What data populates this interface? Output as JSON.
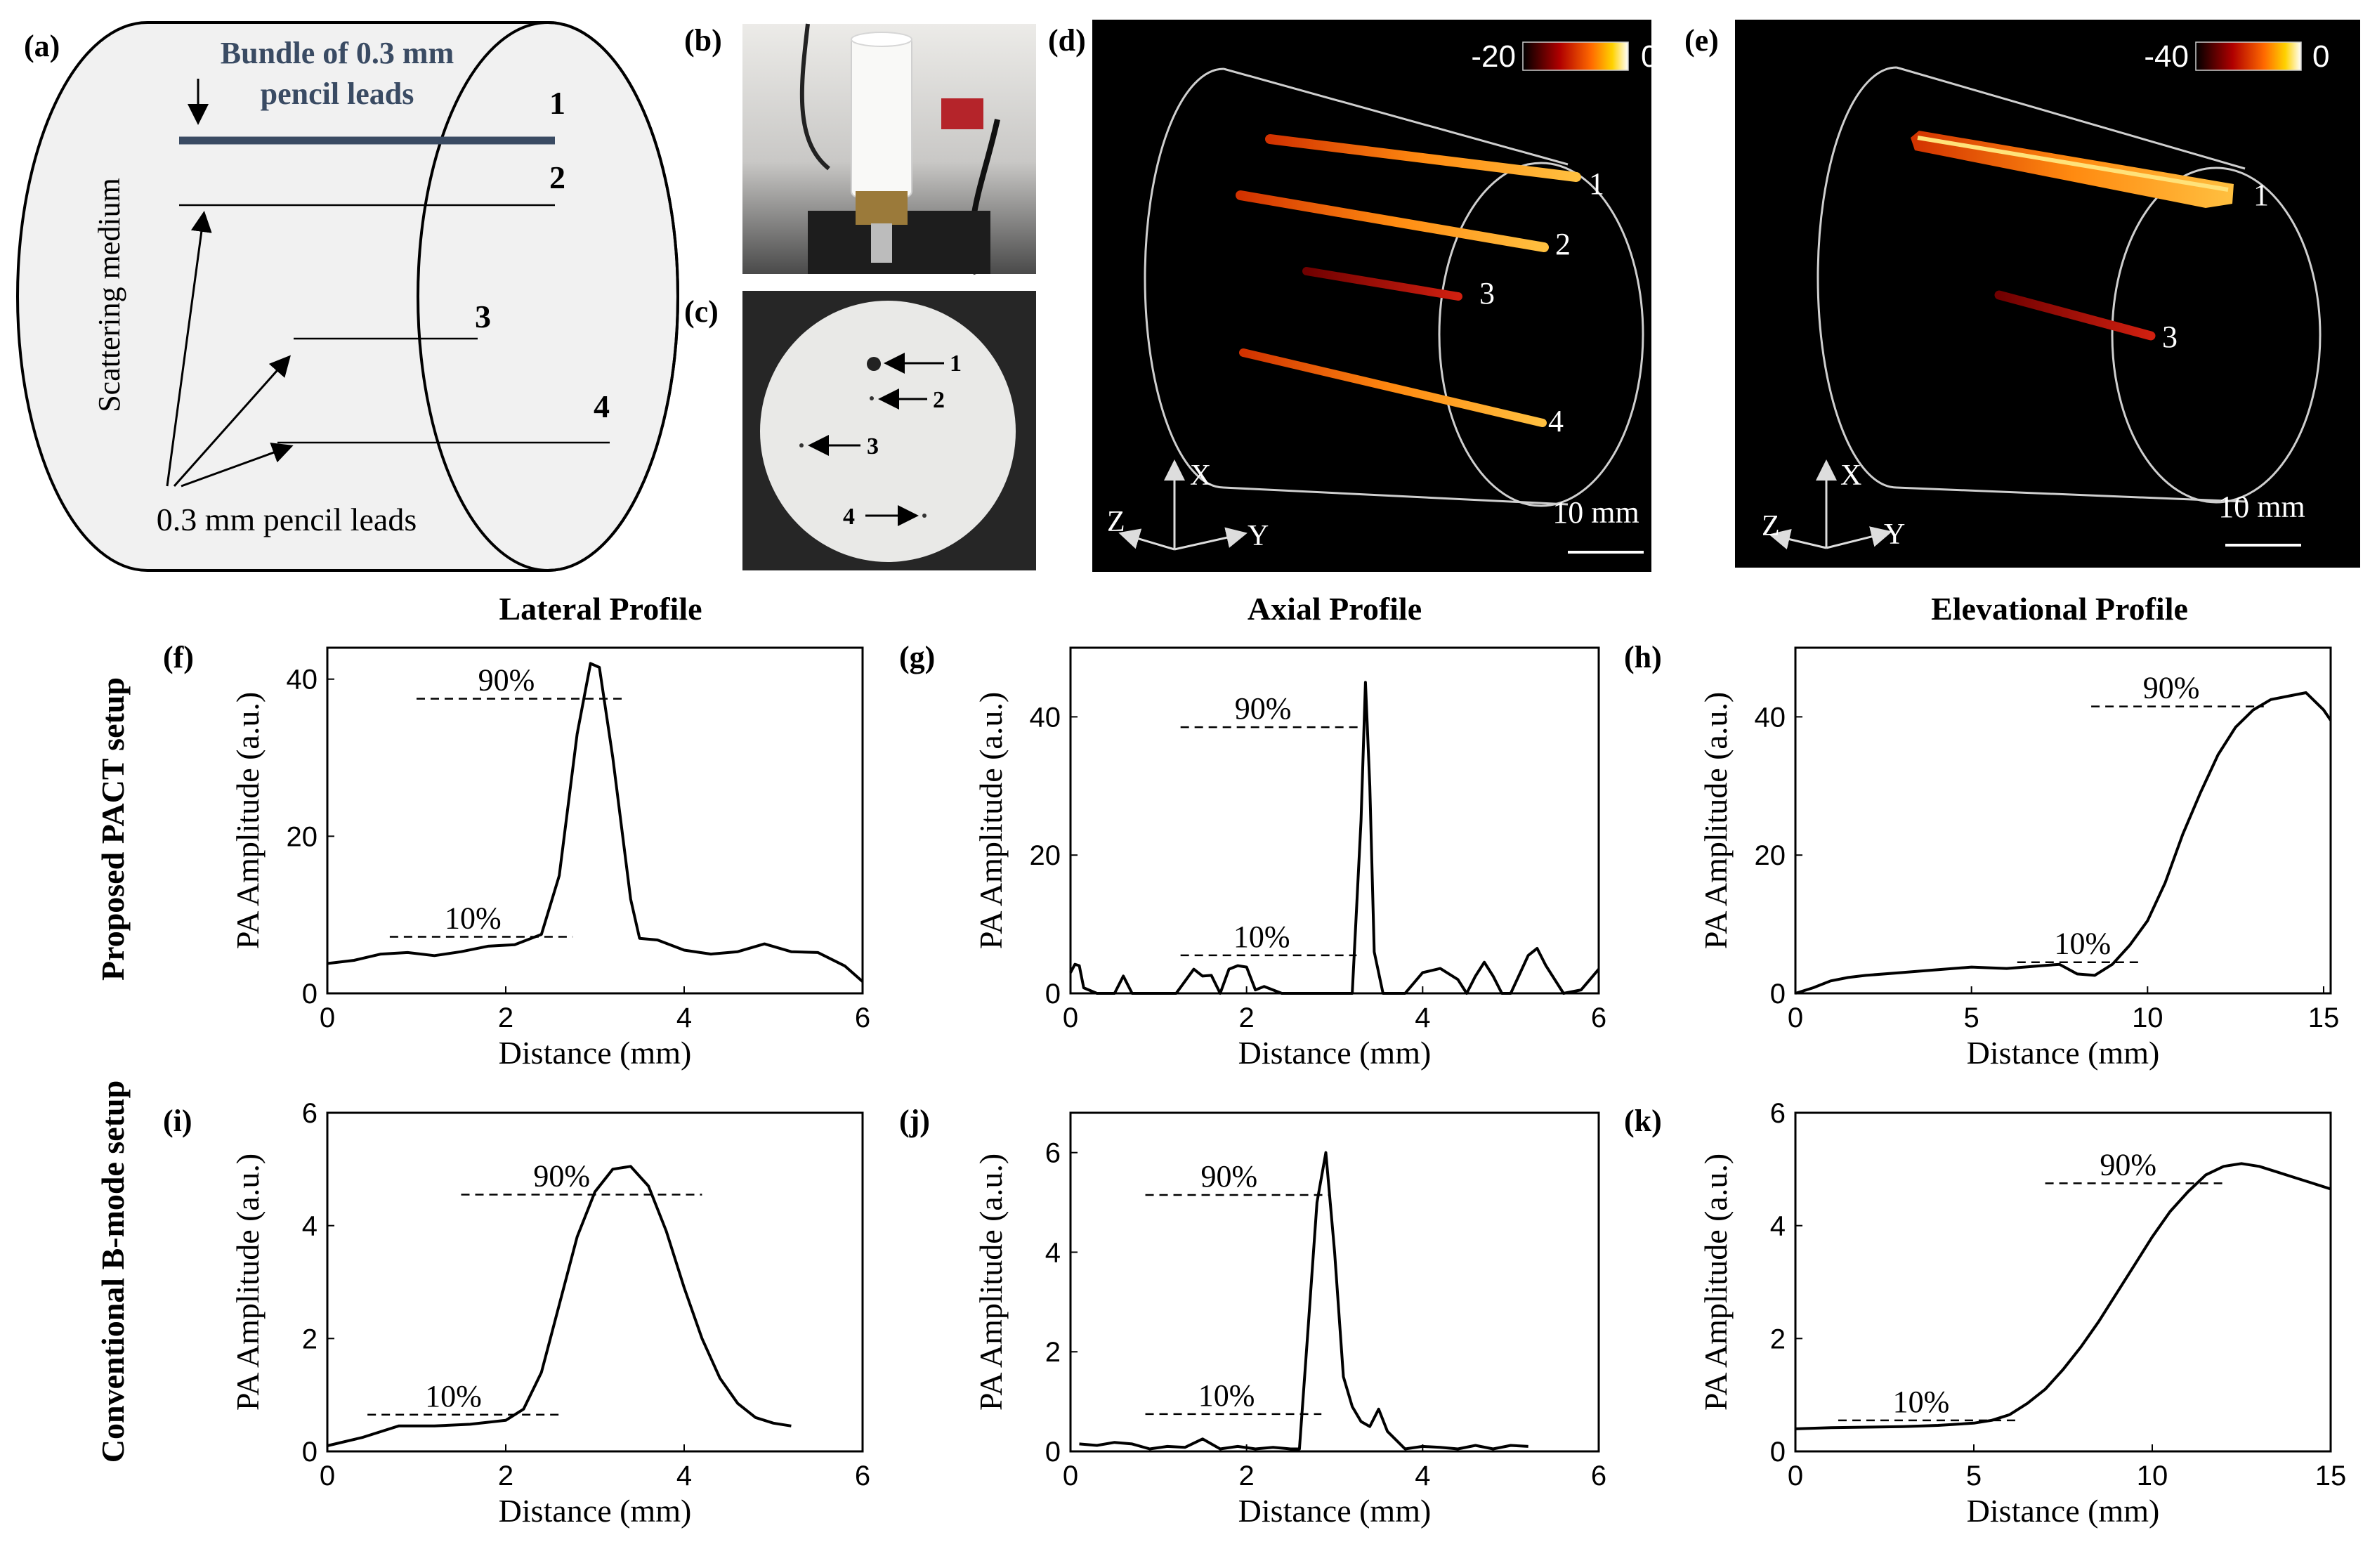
{
  "panel_labels": {
    "a": "(a)",
    "b": "(b)",
    "c": "(c)",
    "d": "(d)",
    "e": "(e)",
    "f": "(f)",
    "g": "(g)",
    "h": "(h)",
    "i": "(i)",
    "j": "(j)",
    "k": "(k)"
  },
  "panel_a": {
    "bundle_line1": "Bundle of 0.3 mm",
    "bundle_line2": "pencil leads",
    "medium_label": "Scattering medium",
    "leads_label": "0.3 mm pencil leads",
    "numbers": [
      "1",
      "2",
      "3",
      "4"
    ]
  },
  "panel_c": {
    "numbers": [
      "1",
      "2",
      "3",
      "4"
    ]
  },
  "panel_d": {
    "colorbar_min": "-20",
    "colorbar_max": "0",
    "axes": {
      "x": "X",
      "y": "Y",
      "z": "Z"
    },
    "scale": "10 mm",
    "numbers": [
      "1",
      "2",
      "3",
      "4"
    ]
  },
  "panel_e": {
    "colorbar_min": "-40",
    "colorbar_max": "0",
    "axes": {
      "x": "X",
      "y": "Y",
      "z": "Z"
    },
    "scale": "10 mm",
    "numbers": [
      "1",
      "3"
    ]
  },
  "column_titles": {
    "lateral": "Lateral Profile",
    "axial": "Axial Profile",
    "elevational": "Elevational Profile"
  },
  "row_labels": {
    "top": "Proposed PACT setup",
    "bottom": "Conventional B-mode setup"
  },
  "chart_data": [
    {
      "id": "f",
      "type": "line",
      "title": "",
      "xlabel": "Distance (mm)",
      "ylabel": "PA Amplitude (a.u.)",
      "xlim": [
        0,
        6
      ],
      "ylim": [
        0,
        44
      ],
      "xticks": [
        0,
        2,
        4,
        6
      ],
      "yticks": [
        0,
        20,
        40
      ],
      "x": [
        0,
        0.3,
        0.6,
        0.9,
        1.2,
        1.5,
        1.8,
        2.1,
        2.4,
        2.6,
        2.8,
        2.95,
        3.05,
        3.2,
        3.4,
        3.5,
        3.7,
        4.0,
        4.3,
        4.6,
        4.9,
        5.2,
        5.5,
        5.8,
        6.0
      ],
      "y": [
        3.8,
        4.2,
        5.0,
        5.2,
        4.8,
        5.3,
        6.0,
        6.2,
        7.5,
        15,
        33,
        42,
        41.5,
        30,
        12,
        7,
        6.8,
        5.5,
        5.0,
        5.3,
        6.3,
        5.3,
        5.2,
        3.5,
        1.5
      ],
      "markers": [
        {
          "label": "90%",
          "y": 37.5,
          "x0": 1.0,
          "x1": 3.3
        },
        {
          "label": "10%",
          "y": 7.2,
          "x0": 0.7,
          "x1": 2.75
        }
      ]
    },
    {
      "id": "g",
      "type": "line",
      "xlabel": "Distance (mm)",
      "ylabel": "PA Amplitude (a.u.)",
      "xlim": [
        0,
        6
      ],
      "ylim": [
        0,
        50
      ],
      "xticks": [
        0,
        2,
        4,
        6
      ],
      "yticks": [
        0,
        20,
        40
      ],
      "x": [
        0,
        0.05,
        0.1,
        0.15,
        0.3,
        0.5,
        0.6,
        0.7,
        1.0,
        1.2,
        1.4,
        1.5,
        1.6,
        1.7,
        1.8,
        1.9,
        2.0,
        2.1,
        2.2,
        2.4,
        2.6,
        2.8,
        3.0,
        3.1,
        3.2,
        3.3,
        3.35,
        3.4,
        3.45,
        3.55,
        3.65,
        3.8,
        4.0,
        4.2,
        4.4,
        4.5,
        4.6,
        4.7,
        4.8,
        4.9,
        5.0,
        5.2,
        5.3,
        5.4,
        5.6,
        5.8,
        5.9,
        6.0
      ],
      "y": [
        3,
        4.2,
        4,
        0.8,
        0,
        0,
        2.5,
        0,
        0,
        0,
        3.5,
        2.5,
        2.6,
        0,
        3.5,
        4,
        3.8,
        0.5,
        1,
        0,
        0,
        0,
        0,
        0,
        0,
        25,
        45,
        30,
        6,
        0,
        0,
        0,
        3,
        3.6,
        2,
        0,
        2.5,
        4.5,
        2.5,
        0,
        0,
        5.5,
        6.5,
        4,
        0,
        0.5,
        2,
        3.5
      ],
      "markers": [
        {
          "label": "90%",
          "y": 38.5,
          "x0": 1.25,
          "x1": 3.3
        },
        {
          "label": "10%",
          "y": 5.5,
          "x0": 1.25,
          "x1": 3.25
        }
      ]
    },
    {
      "id": "h",
      "type": "line",
      "xlabel": "Distance (mm)",
      "ylabel": "PA Amplitude (a.u.)",
      "xlim": [
        0,
        15.2
      ],
      "ylim": [
        0,
        50
      ],
      "xticks": [
        0,
        5,
        10,
        15
      ],
      "yticks": [
        0,
        20,
        40
      ],
      "x": [
        0,
        0.5,
        1,
        1.5,
        2,
        3,
        4,
        5,
        6,
        7,
        7.5,
        8,
        8.5,
        9,
        9.5,
        10,
        10.5,
        11,
        11.5,
        12,
        12.5,
        13,
        13.5,
        14,
        14.5,
        15,
        15.2
      ],
      "y": [
        0,
        0.8,
        1.8,
        2.3,
        2.6,
        3,
        3.4,
        3.8,
        3.6,
        4,
        4.2,
        2.8,
        2.6,
        4.2,
        7,
        10.5,
        16,
        23,
        29,
        34.5,
        38.5,
        41,
        42.5,
        43,
        43.5,
        41,
        39.5
      ],
      "markers": [
        {
          "label": "90%",
          "y": 41.5,
          "x0": 8.4,
          "x1": 13.3
        },
        {
          "label": "10%",
          "y": 4.5,
          "x0": 6.3,
          "x1": 9.8
        }
      ]
    },
    {
      "id": "i",
      "type": "line",
      "xlabel": "Distance (mm)",
      "ylabel": "PA Amplitude (a.u.)",
      "xlim": [
        0,
        6
      ],
      "ylim": [
        0,
        6
      ],
      "xticks": [
        0,
        2,
        4,
        6
      ],
      "yticks": [
        0,
        2,
        4,
        6
      ],
      "x": [
        0,
        0.4,
        0.8,
        1.2,
        1.6,
        2.0,
        2.2,
        2.4,
        2.6,
        2.8,
        3.0,
        3.2,
        3.4,
        3.6,
        3.8,
        4.0,
        4.2,
        4.4,
        4.6,
        4.8,
        5.0,
        5.2
      ],
      "y": [
        0.1,
        0.25,
        0.45,
        0.45,
        0.48,
        0.55,
        0.75,
        1.4,
        2.6,
        3.8,
        4.6,
        5.0,
        5.05,
        4.7,
        3.9,
        2.9,
        2.0,
        1.3,
        0.85,
        0.6,
        0.5,
        0.45
      ],
      "markers": [
        {
          "label": "90%",
          "y": 4.55,
          "x0": 1.5,
          "x1": 4.2
        },
        {
          "label": "10%",
          "y": 0.65,
          "x0": 0.45,
          "x1": 2.6
        }
      ]
    },
    {
      "id": "j",
      "type": "line",
      "xlabel": "Distance (mm)",
      "ylabel": "PA Amplitude (a.u.)",
      "xlim": [
        0,
        6
      ],
      "ylim": [
        0,
        6.8
      ],
      "xticks": [
        0,
        2,
        4,
        6
      ],
      "yticks": [
        0,
        2,
        4,
        6
      ],
      "x": [
        0.1,
        0.3,
        0.5,
        0.7,
        0.9,
        1.1,
        1.3,
        1.5,
        1.7,
        1.9,
        2.1,
        2.3,
        2.5,
        2.6,
        2.7,
        2.8,
        2.9,
        3.0,
        3.1,
        3.2,
        3.3,
        3.4,
        3.5,
        3.6,
        3.8,
        4.0,
        4.2,
        4.4,
        4.6,
        4.8,
        5.0,
        5.2
      ],
      "y": [
        0.15,
        0.12,
        0.18,
        0.15,
        0.05,
        0.1,
        0.08,
        0.25,
        0.05,
        0.1,
        0.05,
        0.08,
        0.05,
        0.05,
        2.5,
        5.0,
        6.0,
        4.0,
        1.5,
        0.9,
        0.6,
        0.5,
        0.85,
        0.4,
        0.05,
        0.1,
        0.08,
        0.05,
        0.12,
        0.05,
        0.12,
        0.1
      ],
      "markers": [
        {
          "label": "90%",
          "y": 5.15,
          "x0": 0.85,
          "x1": 2.95
        },
        {
          "label": "10%",
          "y": 0.75,
          "x0": 0.85,
          "x1": 2.85
        }
      ]
    },
    {
      "id": "k",
      "type": "line",
      "xlabel": "Distance (mm)",
      "ylabel": "PA Amplitude (a.u.)",
      "xlim": [
        0,
        15
      ],
      "ylim": [
        0,
        6
      ],
      "xticks": [
        0,
        5,
        10,
        15
      ],
      "yticks": [
        0,
        2,
        4,
        6
      ],
      "x": [
        0,
        1,
        2,
        3,
        4,
        5,
        5.5,
        6,
        6.5,
        7,
        7.5,
        8,
        8.5,
        9,
        9.5,
        10,
        10.5,
        11,
        11.5,
        12,
        12.5,
        13,
        13.5,
        14,
        14.5,
        15
      ],
      "y": [
        0.4,
        0.42,
        0.43,
        0.44,
        0.46,
        0.5,
        0.55,
        0.65,
        0.85,
        1.1,
        1.45,
        1.85,
        2.3,
        2.8,
        3.3,
        3.8,
        4.25,
        4.6,
        4.9,
        5.05,
        5.1,
        5.05,
        4.95,
        4.85,
        4.75,
        4.65
      ],
      "markers": [
        {
          "label": "90%",
          "y": 4.75,
          "x0": 7.0,
          "x1": 12.1
        },
        {
          "label": "10%",
          "y": 0.55,
          "x0": 1.2,
          "x1": 6.3
        }
      ]
    }
  ]
}
